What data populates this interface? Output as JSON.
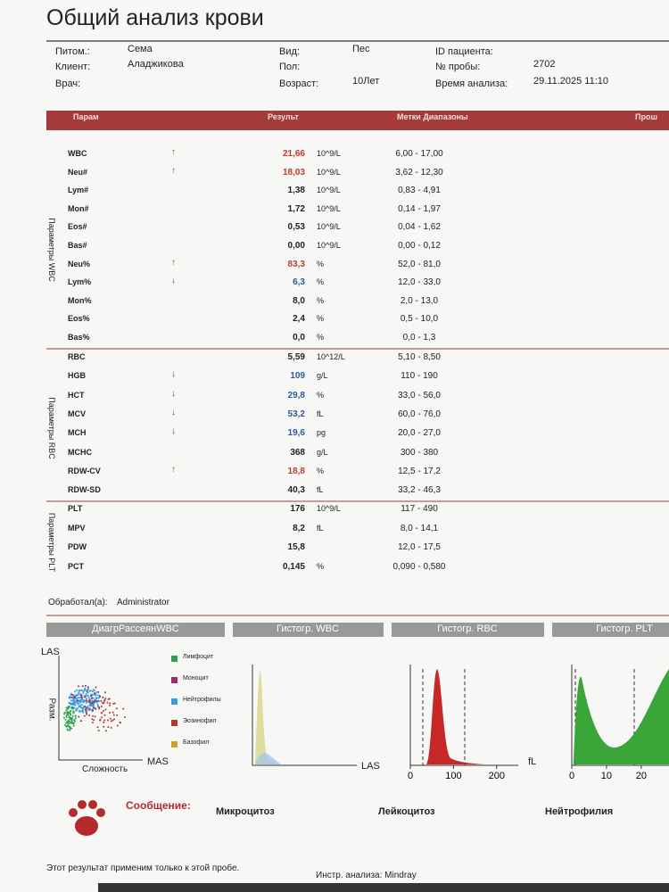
{
  "header": {
    "title": "Общий анализ крови"
  },
  "info": {
    "left": [
      {
        "label": "Питом.:",
        "value": "Сема"
      },
      {
        "label": "Клиент:",
        "value": "Аладжикова"
      },
      {
        "label": "Врач:"
      }
    ],
    "middle": [
      {
        "label": "Вид:",
        "value": "Пес"
      },
      {
        "label": "Пол:"
      },
      {
        "label": "Возраст:",
        "value": "10Лет"
      }
    ],
    "right": [
      {
        "label": "ID пациента:"
      },
      {
        "label": "№ пробы:",
        "value": "2702"
      },
      {
        "label": "Время анализа:",
        "value": "29.11.2025 11:10"
      }
    ]
  },
  "table": {
    "columns": [
      "Парам",
      "Результ",
      "Метки Диапазоны",
      "Прош"
    ],
    "groups": [
      {
        "label": "Параметры WBC",
        "rows": [
          {
            "name": "WBC",
            "flag": "↑",
            "color": "#c0392b",
            "result": "21,66",
            "unit": "10^9/L",
            "range": "6,00 - 17,00"
          },
          {
            "name": "Neu#",
            "flag": "↑",
            "color": "#c0392b",
            "result": "18,03",
            "unit": "10^9/L",
            "range": "3,62 - 12,30"
          },
          {
            "name": "Lym#",
            "result": "1,38",
            "unit": "10^9/L",
            "range": "0,83 - 4,91"
          },
          {
            "name": "Mon#",
            "result": "1,72",
            "unit": "10^9/L",
            "range": "0,14 - 1,97"
          },
          {
            "name": "Eos#",
            "result": "0,53",
            "unit": "10^9/L",
            "range": "0,04 - 1,62"
          },
          {
            "name": "Bas#",
            "result": "0,00",
            "unit": "10^9/L",
            "range": "0,00 - 0,12"
          },
          {
            "name": "Neu%",
            "flag": "↑",
            "color": "#c0392b",
            "result": "83,3",
            "unit": "%",
            "range": "52,0 - 81,0"
          },
          {
            "name": "Lym%",
            "flag": "↓",
            "color": "#2a5a9c",
            "result": "6,3",
            "unit": "%",
            "range": "12,0 - 33,0"
          },
          {
            "name": "Mon%",
            "result": "8,0",
            "unit": "%",
            "range": "2,0 - 13,0"
          },
          {
            "name": "Eos%",
            "result": "2,4",
            "unit": "%",
            "range": "0,5 - 10,0"
          },
          {
            "name": "Bas%",
            "result": "0,0",
            "unit": "%",
            "range": "0,0 - 1,3"
          }
        ]
      },
      {
        "label": "Параметры RBC",
        "rows": [
          {
            "name": "RBC",
            "result": "5,59",
            "unit": "10^12/L",
            "range": "5,10 - 8,50"
          },
          {
            "name": "HGB",
            "flag": "↓",
            "color": "#2a5a9c",
            "result": "109",
            "unit": "g/L",
            "range": "110 - 190"
          },
          {
            "name": "HCT",
            "flag": "↓",
            "color": "#2a5a9c",
            "result": "29,8",
            "unit": "%",
            "range": "33,0 - 56,0"
          },
          {
            "name": "MCV",
            "flag": "↓",
            "color": "#2a5a9c",
            "result": "53,2",
            "unit": "fL",
            "range": "60,0 - 76,0"
          },
          {
            "name": "MCH",
            "flag": "↓",
            "color": "#2a5a9c",
            "result": "19,6",
            "unit": "pg",
            "range": "20,0 - 27,0"
          },
          {
            "name": "MCHC",
            "result": "368",
            "unit": "g/L",
            "range": "300 - 380"
          },
          {
            "name": "RDW-CV",
            "flag": "↑",
            "color": "#c0392b",
            "result": "18,8",
            "unit": "%",
            "range": "12,5 - 17,2"
          },
          {
            "name": "RDW-SD",
            "result": "40,3",
            "unit": "fL",
            "range": "33,2 - 46,3"
          }
        ]
      },
      {
        "label": "Параметры PLT",
        "rows": [
          {
            "name": "PLT",
            "result": "176",
            "unit": "10^9/L",
            "range": "117 - 490"
          },
          {
            "name": "MPV",
            "result": "8,2",
            "unit": "fL",
            "range": "8,0 - 14,1"
          },
          {
            "name": "PDW",
            "result": "15,8",
            "range": "12,0 - 17,5"
          },
          {
            "name": "PCT",
            "result": "0,145",
            "unit": "%",
            "range": "0,090 - 0,580"
          }
        ]
      }
    ]
  },
  "processed": {
    "label": "Обработал(а):",
    "value": "Administrator"
  },
  "charts": [
    {
      "title": "ДиагрРассеянWBC",
      "y_label": "LAS",
      "y_label2": "Разм.",
      "x_label": "MAS",
      "x_label2": "Сложность",
      "legend": [
        {
          "name": "Лимфоцит",
          "color": "#2e9e4f"
        },
        {
          "name": "Моноцит",
          "color": "#9b2d6e"
        },
        {
          "name": "Нейтрофилы",
          "color": "#3a9be0"
        },
        {
          "name": "Эозинофил",
          "color": "#b03a2e"
        },
        {
          "name": "Базофил",
          "color": "#c9a227"
        }
      ]
    },
    {
      "title": "Гистогр. WBC",
      "x_label": "LAS"
    },
    {
      "title": "Гистогр. RBC",
      "x_label": "fL",
      "xlim": [
        0,
        250
      ],
      "xticks": [
        0,
        100,
        200
      ]
    },
    {
      "title": "Гистогр. PLT",
      "xlim": [
        0,
        28
      ],
      "xticks": [
        0,
        10,
        20
      ]
    }
  ],
  "message": {
    "label": "Сообщение:",
    "items": [
      "Микроцитоз",
      "Лейкоцитоз",
      "Нейтрофилия"
    ]
  },
  "footer": {
    "note": "Этот результат применим только к этой пробе.",
    "instrument": "Инстр. анализа: Mindray"
  }
}
